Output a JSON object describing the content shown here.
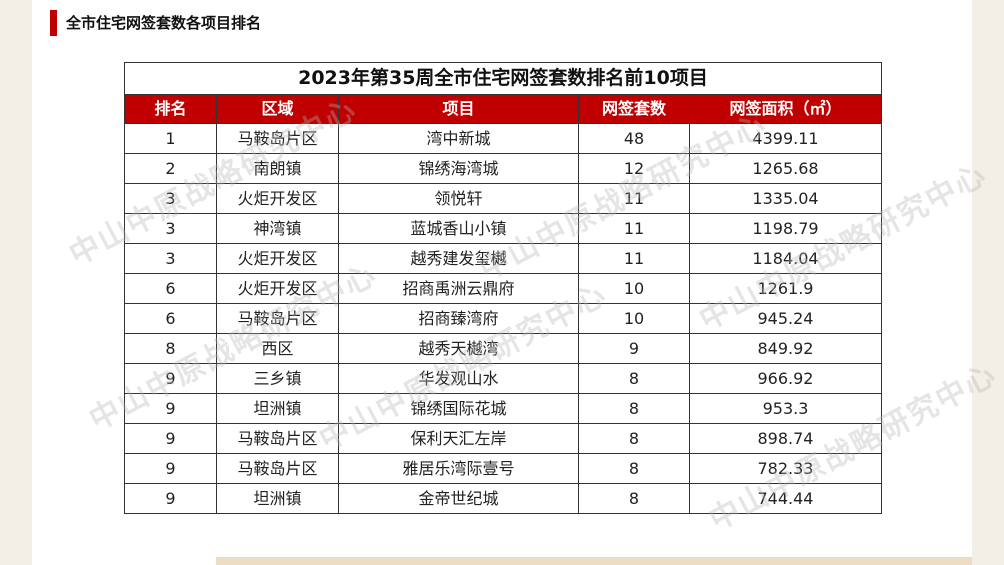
{
  "header": {
    "title": "全市住宅网签套数各项目排名"
  },
  "watermark": "中山中原战略研究中心",
  "table": {
    "title": "2023年第35周全市住宅网签套数排名前10项目",
    "columns": [
      "排名",
      "区域",
      "项目",
      "网签套数",
      "网签面积（㎡）"
    ],
    "rows": [
      [
        "1",
        "马鞍岛片区",
        "湾中新城",
        "48",
        "4399.11"
      ],
      [
        "2",
        "南朗镇",
        "锦绣海湾城",
        "12",
        "1265.68"
      ],
      [
        "3",
        "火炬开发区",
        "领悦轩",
        "11",
        "1335.04"
      ],
      [
        "3",
        "神湾镇",
        "蓝城香山小镇",
        "11",
        "1198.79"
      ],
      [
        "3",
        "火炬开发区",
        "越秀建发玺樾",
        "11",
        "1184.04"
      ],
      [
        "6",
        "火炬开发区",
        "招商禹洲云鼎府",
        "10",
        "1261.9"
      ],
      [
        "6",
        "马鞍岛片区",
        "招商臻湾府",
        "10",
        "945.24"
      ],
      [
        "8",
        "西区",
        "越秀天樾湾",
        "9",
        "849.92"
      ],
      [
        "9",
        "三乡镇",
        "华发观山水",
        "8",
        "966.92"
      ],
      [
        "9",
        "坦洲镇",
        "锦绣国际花城",
        "8",
        "953.3"
      ],
      [
        "9",
        "马鞍岛片区",
        "保利天汇左岸",
        "8",
        "898.74"
      ],
      [
        "9",
        "马鞍岛片区",
        "雅居乐湾际壹号",
        "8",
        "782.33"
      ],
      [
        "9",
        "坦洲镇",
        "金帝世纪城",
        "8",
        "744.44"
      ]
    ]
  },
  "colors": {
    "accent": "#c00000",
    "header_text": "#ffffff"
  }
}
